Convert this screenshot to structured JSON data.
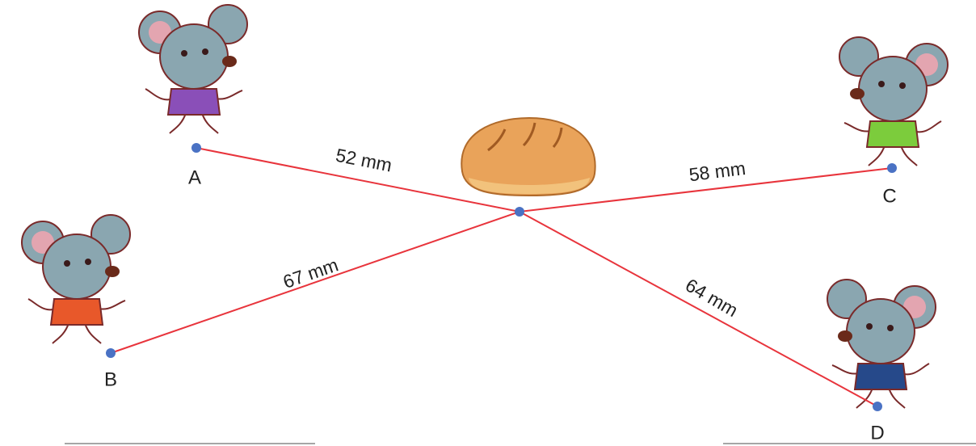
{
  "points": [
    {
      "label": "A"
    },
    {
      "label": "B"
    },
    {
      "label": "C"
    },
    {
      "label": "D"
    }
  ],
  "distances": [
    {
      "label": "52 mm"
    },
    {
      "label": "67 mm"
    },
    {
      "label": "58 mm"
    },
    {
      "label": "64 mm"
    }
  ]
}
